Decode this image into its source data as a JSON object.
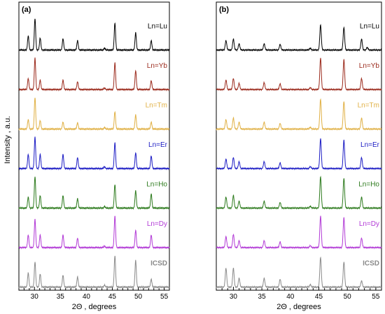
{
  "figure": {
    "y_axis_label": "Intensity , a.u.",
    "x_axis_label": "2Θ , degrees"
  },
  "chart_data": [
    {
      "panel_label": "(a)",
      "type": "line",
      "xlabel": "2Θ , degrees",
      "ylabel": "Intensity , a.u.",
      "xlim": [
        27,
        56
      ],
      "xticks": [
        30,
        35,
        40,
        45,
        50,
        55
      ],
      "xticks_minor_step": 1,
      "grid": false,
      "legend": "labels at right of each trace",
      "series": [
        {
          "name": "Ln=Lu",
          "color": "#000000",
          "peaks": [
            [
              28.8,
              0.45
            ],
            [
              30.1,
              1.0
            ],
            [
              31.1,
              0.38
            ],
            [
              35.5,
              0.36
            ],
            [
              38.3,
              0.3
            ],
            [
              43.5,
              0.06
            ],
            [
              45.5,
              0.86
            ],
            [
              49.5,
              0.55
            ],
            [
              52.5,
              0.3
            ]
          ]
        },
        {
          "name": "Ln=Yb",
          "color": "#9b2a1c",
          "peaks": [
            [
              28.8,
              0.35
            ],
            [
              30.1,
              1.0
            ],
            [
              31.1,
              0.3
            ],
            [
              35.5,
              0.3
            ],
            [
              38.3,
              0.25
            ],
            [
              43.5,
              0.05
            ],
            [
              45.5,
              0.85
            ],
            [
              49.5,
              0.6
            ],
            [
              52.5,
              0.28
            ]
          ]
        },
        {
          "name": "Ln=Tm",
          "color": "#e0b044",
          "peaks": [
            [
              28.8,
              0.3
            ],
            [
              30.1,
              1.0
            ],
            [
              31.1,
              0.27
            ],
            [
              35.5,
              0.22
            ],
            [
              38.3,
              0.2
            ],
            [
              43.5,
              0.05
            ],
            [
              45.5,
              0.55
            ],
            [
              49.5,
              0.45
            ],
            [
              52.5,
              0.22
            ]
          ]
        },
        {
          "name": "Ln=Er",
          "color": "#1c1cc4",
          "peaks": [
            [
              28.8,
              0.45
            ],
            [
              30.1,
              1.0
            ],
            [
              31.1,
              0.45
            ],
            [
              35.5,
              0.45
            ],
            [
              38.3,
              0.35
            ],
            [
              43.5,
              0.06
            ],
            [
              45.5,
              0.82
            ],
            [
              49.5,
              0.5
            ],
            [
              52.5,
              0.4
            ]
          ]
        },
        {
          "name": "Ln=Ho",
          "color": "#2c7a1c",
          "peaks": [
            [
              28.8,
              0.35
            ],
            [
              30.1,
              1.0
            ],
            [
              31.1,
              0.4
            ],
            [
              35.5,
              0.4
            ],
            [
              38.3,
              0.3
            ],
            [
              43.5,
              0.05
            ],
            [
              45.5,
              0.75
            ],
            [
              49.5,
              0.55
            ],
            [
              52.5,
              0.45
            ]
          ]
        },
        {
          "name": "Ln=Dy",
          "color": "#b23ad6",
          "peaks": [
            [
              28.8,
              0.4
            ],
            [
              30.1,
              0.9
            ],
            [
              31.1,
              0.4
            ],
            [
              35.5,
              0.4
            ],
            [
              38.3,
              0.3
            ],
            [
              43.5,
              0.05
            ],
            [
              45.5,
              1.0
            ],
            [
              49.5,
              0.55
            ],
            [
              52.5,
              0.4
            ]
          ]
        },
        {
          "name": "ICSD",
          "color": "#8a8a8a",
          "peaks": [
            [
              28.8,
              0.45
            ],
            [
              30.1,
              0.8
            ],
            [
              31.1,
              0.42
            ],
            [
              35.5,
              0.38
            ],
            [
              38.3,
              0.32
            ],
            [
              43.5,
              0.06
            ],
            [
              45.5,
              1.0
            ],
            [
              49.5,
              0.85
            ],
            [
              52.5,
              0.25
            ]
          ]
        }
      ]
    },
    {
      "panel_label": "(b)",
      "type": "line",
      "xlabel": "2Θ , degrees",
      "ylabel": "",
      "xlim": [
        27,
        56
      ],
      "xticks": [
        30,
        35,
        40,
        45,
        50,
        55
      ],
      "xticks_minor_step": 1,
      "grid": false,
      "legend": "labels at right of each trace",
      "series": [
        {
          "name": "Ln=Lu",
          "color": "#000000",
          "peaks": [
            [
              28.7,
              0.3
            ],
            [
              30.0,
              0.35
            ],
            [
              31.0,
              0.2
            ],
            [
              35.4,
              0.2
            ],
            [
              38.2,
              0.18
            ],
            [
              43.5,
              0.06
            ],
            [
              45.3,
              0.8
            ],
            [
              49.4,
              0.72
            ],
            [
              52.5,
              0.35
            ],
            [
              53.5,
              0.08
            ]
          ]
        },
        {
          "name": "Ln=Yb",
          "color": "#9b2a1c",
          "peaks": [
            [
              28.7,
              0.3
            ],
            [
              30.0,
              0.35
            ],
            [
              31.0,
              0.2
            ],
            [
              35.4,
              0.22
            ],
            [
              38.2,
              0.18
            ],
            [
              43.5,
              0.06
            ],
            [
              45.3,
              1.0
            ],
            [
              49.4,
              0.95
            ],
            [
              52.5,
              0.35
            ]
          ]
        },
        {
          "name": "Ln=Tm",
          "color": "#e0b044",
          "peaks": [
            [
              28.7,
              0.3
            ],
            [
              30.0,
              0.35
            ],
            [
              31.0,
              0.22
            ],
            [
              35.4,
              0.22
            ],
            [
              38.2,
              0.18
            ],
            [
              43.5,
              0.06
            ],
            [
              45.3,
              0.95
            ],
            [
              49.4,
              0.88
            ],
            [
              52.5,
              0.35
            ]
          ]
        },
        {
          "name": "Ln=Er",
          "color": "#1c1cc4",
          "peaks": [
            [
              28.7,
              0.3
            ],
            [
              30.0,
              0.35
            ],
            [
              31.0,
              0.22
            ],
            [
              35.4,
              0.22
            ],
            [
              38.2,
              0.18
            ],
            [
              43.5,
              0.06
            ],
            [
              45.3,
              0.95
            ],
            [
              49.4,
              0.9
            ],
            [
              52.5,
              0.35
            ]
          ]
        },
        {
          "name": "Ln=Ho",
          "color": "#2c7a1c",
          "peaks": [
            [
              28.7,
              0.35
            ],
            [
              30.0,
              0.4
            ],
            [
              31.0,
              0.22
            ],
            [
              35.4,
              0.22
            ],
            [
              38.2,
              0.18
            ],
            [
              43.5,
              0.06
            ],
            [
              45.3,
              1.0
            ],
            [
              49.4,
              0.95
            ],
            [
              52.5,
              0.35
            ]
          ]
        },
        {
          "name": "Ln=Dy",
          "color": "#b23ad6",
          "peaks": [
            [
              28.7,
              0.35
            ],
            [
              30.0,
              0.42
            ],
            [
              31.0,
              0.22
            ],
            [
              35.4,
              0.22
            ],
            [
              38.2,
              0.18
            ],
            [
              43.5,
              0.06
            ],
            [
              45.3,
              1.0
            ],
            [
              49.4,
              0.95
            ],
            [
              52.5,
              0.3
            ]
          ]
        },
        {
          "name": "ICSD",
          "color": "#8a8a8a",
          "peaks": [
            [
              28.7,
              0.6
            ],
            [
              30.0,
              0.6
            ],
            [
              31.0,
              0.28
            ],
            [
              35.4,
              0.28
            ],
            [
              38.2,
              0.25
            ],
            [
              43.5,
              0.08
            ],
            [
              45.3,
              0.95
            ],
            [
              49.4,
              0.8
            ],
            [
              52.5,
              0.2
            ]
          ]
        }
      ]
    }
  ]
}
